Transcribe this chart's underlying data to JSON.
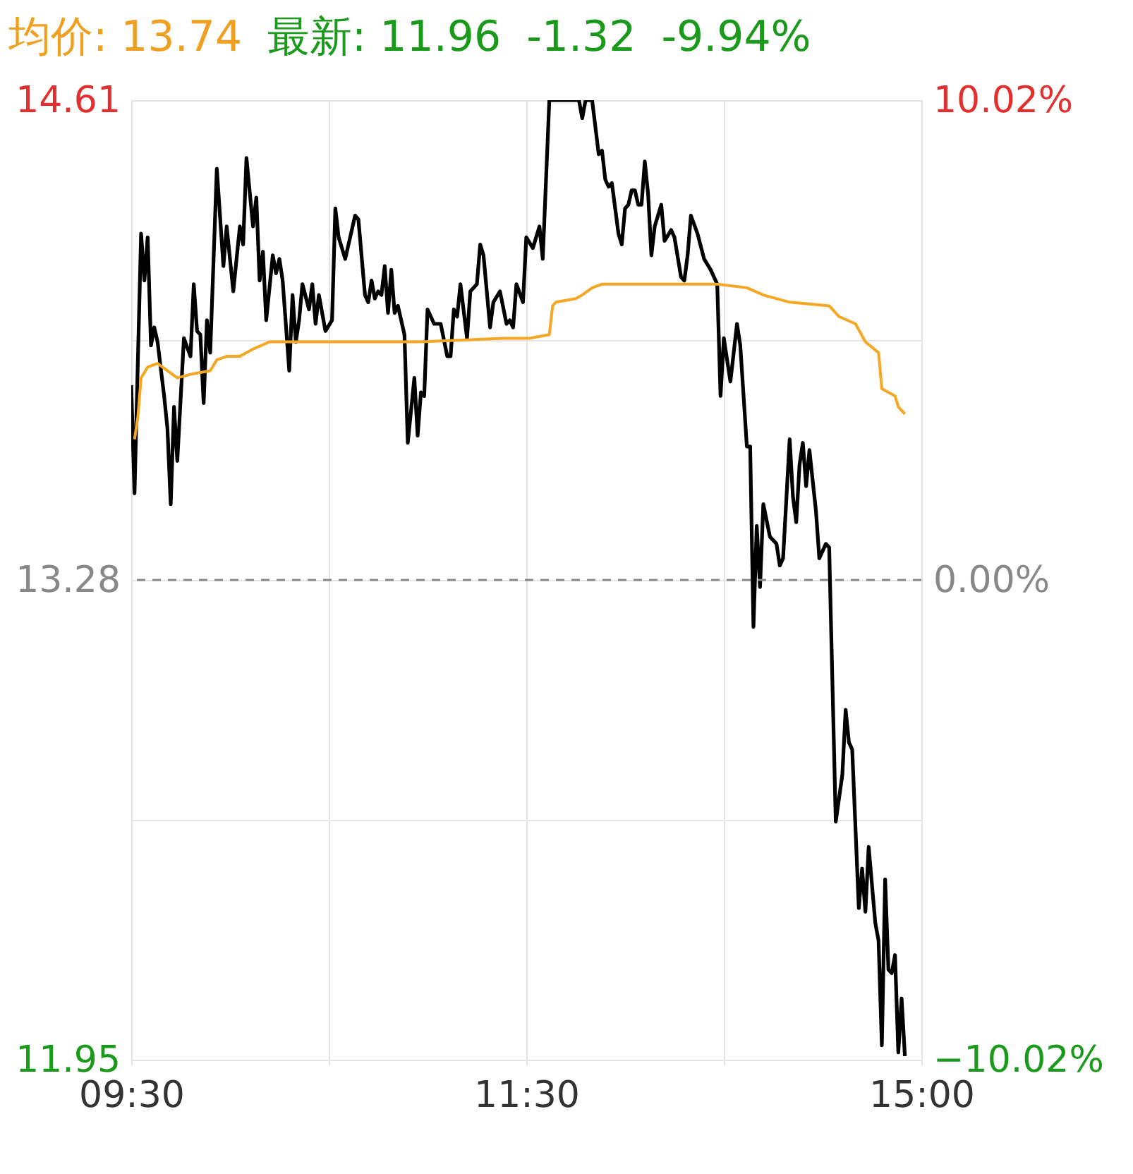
{
  "chart_data": {
    "type": "line",
    "title": "均价: 13.74",
    "annotations": [
      "最新: 11.96",
      "-1.32",
      "-9.94%"
    ],
    "categories": [
      "09:30",
      null,
      null,
      null,
      null,
      null,
      null,
      null,
      null,
      null,
      null,
      null,
      null,
      null,
      null,
      null,
      null,
      null,
      null,
      null,
      null,
      null,
      null,
      null,
      null,
      null,
      null,
      null,
      null,
      null,
      null,
      null,
      null,
      null,
      null,
      null,
      null,
      null,
      null,
      null,
      null,
      null,
      null,
      null,
      null,
      null,
      null,
      null,
      null,
      null,
      null,
      null,
      null,
      null,
      null,
      null,
      null,
      null,
      null,
      null,
      null,
      null,
      null,
      null,
      null,
      null,
      null,
      null,
      null,
      null,
      null,
      null,
      null,
      null,
      null,
      null,
      null,
      null,
      null,
      null,
      null,
      null,
      null,
      null,
      null,
      null,
      null,
      null,
      null,
      null,
      null,
      null,
      null,
      null,
      null,
      null,
      null,
      null,
      null,
      null,
      null,
      null,
      null,
      null,
      null,
      null,
      null,
      null,
      null,
      null,
      null,
      null,
      null,
      null,
      null,
      null,
      null,
      null,
      null,
      null,
      "11:30",
      null,
      null,
      null,
      null,
      null,
      null,
      null,
      null,
      null,
      null,
      null,
      null,
      null,
      null,
      null,
      null,
      null,
      null,
      null,
      null,
      null,
      null,
      null,
      null,
      null,
      null,
      null,
      null,
      null,
      null,
      null,
      null,
      null,
      null,
      null,
      null,
      null,
      null,
      null,
      null,
      null,
      null,
      null,
      null,
      null,
      null,
      null,
      null,
      null,
      null,
      null,
      null,
      null,
      null,
      null,
      null,
      null,
      null,
      null,
      null,
      null,
      null,
      null,
      null,
      null,
      null,
      null,
      null,
      null,
      null,
      null,
      null,
      null,
      null,
      null,
      null,
      null,
      null,
      null,
      null,
      null,
      null,
      null,
      null,
      null,
      null,
      null,
      null,
      null,
      null,
      null,
      null,
      null,
      null,
      null,
      null,
      null,
      null,
      null,
      null,
      null,
      null,
      null,
      null,
      null,
      null,
      null,
      null,
      null,
      null,
      null,
      null,
      null,
      null,
      null,
      null,
      null,
      null,
      null,
      "15:00"
    ],
    "ylim": [
      11.95,
      14.61
    ],
    "yticks": [
      14.61,
      {
        "value": 13.945,
        "label": null
      },
      13.28,
      {
        "value": 12.615,
        "label": null
      },
      11.95
    ],
    "y2lim": [
      -10.02,
      10.02
    ],
    "y2ticks": [
      {
        "value": 10.02,
        "label": "10.02%"
      },
      {
        "value": 0,
        "label": "0.00%"
      },
      {
        "value": -10.02,
        "label": "−10.02%"
      }
    ],
    "grid": true,
    "line_style": "solid",
    "ref_lines": [
      {
        "axis": "y2",
        "value": 0,
        "label": null,
        "color": "#888888",
        "line_style": "dashed"
      }
    ],
    "series": [
      {
        "color": "#000000",
        "values": [
          13.82,
          13.52,
          null,
          14.24,
          14.11,
          14.23,
          13.93,
          13.98,
          13.94,
          null,
          13.79,
          13.7,
          13.49,
          13.76,
          13.61,
          null,
          13.95,
          null,
          13.9,
          14.1,
          13.97,
          13.96,
          13.77,
          14.0,
          13.91,
          null,
          14.42,
          null,
          14.15,
          14.26,
          null,
          14.08,
          null,
          14.26,
          14.21,
          14.45,
          null,
          14.26,
          14.34,
          14.11,
          14.19,
          14.0,
          null,
          14.18,
          14.13,
          14.17,
          14.11,
          null,
          13.86,
          14.07,
          13.94,
          14.0,
          14.1,
          null,
          14.03,
          14.1,
          13.99,
          14.07,
          null,
          13.97,
          null,
          14.0,
          14.31,
          14.23,
          null,
          14.17,
          null,
          null,
          14.29,
          14.28,
          null,
          14.07,
          14.05,
          14.11,
          14.06,
          14.08,
          14.07,
          14.15,
          14.02,
          14.14,
          14.02,
          14.04,
          null,
          13.96,
          13.66,
          null,
          13.84,
          13.68,
          13.8,
          13.79,
          14.03,
          null,
          13.99,
          null,
          13.99,
          null,
          13.9,
          13.9,
          14.03,
          14.01,
          14.1,
          null,
          13.95,
          14.08,
          null,
          14.1,
          14.21,
          14.18,
          null,
          13.98,
          14.05,
          null,
          14.08,
          null,
          13.99,
          14.0,
          13.98,
          14.1,
          null,
          14.05,
          14.23,
          null,
          14.2,
          null,
          14.26,
          14.17,
          null,
          14.61,
          null,
          null,
          null,
          null,
          null,
          null,
          null,
          null,
          14.61,
          14.56,
          14.61,
          null,
          14.61,
          null,
          14.46,
          14.47,
          14.39,
          14.37,
          14.38,
          null,
          14.24,
          14.21,
          14.31,
          14.32,
          14.36,
          14.36,
          14.32,
          14.32,
          14.44,
          14.35,
          14.18,
          14.26,
          null,
          14.32,
          14.22,
          null,
          14.25,
          14.23,
          null,
          14.12,
          14.11,
          14.18,
          14.29,
          null,
          14.24,
          null,
          14.17,
          null,
          14.14,
          null,
          14.1,
          13.79,
          13.95,
          null,
          13.83,
          null,
          13.99,
          13.93,
          null,
          13.65,
          13.65,
          13.15,
          13.43,
          13.26,
          13.49,
          null,
          13.4,
          null,
          13.38,
          13.32,
          13.34,
          null,
          13.67,
          13.51,
          13.44,
          13.6,
          13.66,
          13.54,
          13.64,
          null,
          13.47,
          13.34,
          null,
          13.38,
          13.37,
          null,
          12.61,
          null,
          12.74,
          12.92,
          12.83,
          12.81,
          null,
          12.37,
          12.48,
          12.36,
          12.54,
          null,
          12.33,
          12.28,
          11.99,
          12.45,
          12.2,
          12.19,
          12.24,
          11.97,
          12.12,
          11.96,
          null,
          null,
          null,
          null,
          null
        ]
      },
      {
        "color": "#f5a623",
        "values": [
          null,
          13.67,
          13.73,
          13.84,
          null,
          13.87,
          null,
          null,
          13.88,
          null,
          null,
          13.86,
          null,
          null,
          13.84,
          null,
          null,
          null,
          13.85,
          null,
          null,
          null,
          null,
          null,
          13.86,
          null,
          13.89,
          null,
          null,
          13.9,
          null,
          null,
          null,
          13.9,
          null,
          null,
          null,
          13.92,
          null,
          null,
          null,
          null,
          13.94,
          null,
          null,
          null,
          null,
          null,
          null,
          13.94,
          null,
          null,
          null,
          null,
          null,
          null,
          null,
          null,
          null,
          null,
          null,
          null,
          null,
          13.94,
          null,
          null,
          null,
          null,
          null,
          null,
          null,
          null,
          null,
          null,
          null,
          null,
          null,
          null,
          null,
          null,
          null,
          null,
          null,
          null,
          null,
          null,
          null,
          null,
          13.94,
          null,
          null,
          null,
          null,
          null,
          null,
          null,
          null,
          null,
          null,
          null,
          null,
          null,
          null,
          null,
          null,
          null,
          null,
          null,
          null,
          null,
          null,
          null,
          null,
          13.95,
          null,
          null,
          null,
          null,
          null,
          null,
          null,
          13.95,
          null,
          null,
          null,
          null,
          null,
          13.96,
          14.04,
          14.05,
          null,
          null,
          null,
          null,
          null,
          14.06,
          null,
          14.07,
          null,
          null,
          14.09,
          null,
          null,
          14.1,
          null,
          null,
          null,
          null,
          null,
          null,
          null,
          null,
          14.1,
          null,
          null,
          null,
          null,
          null,
          null,
          null,
          null,
          null,
          null,
          null,
          null,
          null,
          null,
          null,
          null,
          null,
          null,
          null,
          null,
          null,
          null,
          null,
          null,
          null,
          14.1,
          null,
          null,
          null,
          null,
          null,
          null,
          null,
          null,
          14.09,
          null,
          null,
          null,
          null,
          14.07,
          null,
          null,
          null,
          null,
          null,
          null,
          null,
          14.05,
          null,
          null,
          null,
          null,
          null,
          null,
          null,
          null,
          null,
          null,
          null,
          14.04,
          null,
          null,
          14.01,
          null,
          null,
          null,
          null,
          13.99,
          null,
          null,
          13.94,
          null,
          null,
          null,
          13.91,
          13.81,
          null,
          null,
          null,
          13.79,
          13.76,
          null,
          13.74,
          null,
          null,
          null,
          null,
          null
        ]
      }
    ]
  }
}
